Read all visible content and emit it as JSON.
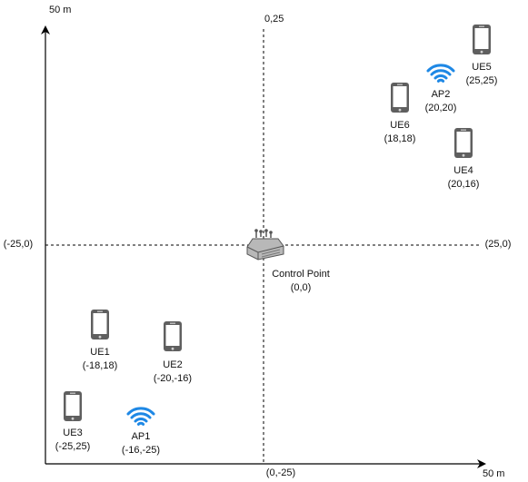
{
  "axes": {
    "y_axis_label": "50 m",
    "x_axis_label": "50 m",
    "top_label": "0,25",
    "bottom_label": "(0,-25)",
    "left_label": "(-25,0)",
    "right_label": "(25,0)"
  },
  "control_point": {
    "name": "Control Point",
    "coords": "(0,0)",
    "icon": "router-icon"
  },
  "devices": [
    {
      "name": "UE1",
      "coords": "(-18,18)",
      "icon": "smartphone-icon"
    },
    {
      "name": "UE2",
      "coords": "(-20,-16)",
      "icon": "smartphone-icon"
    },
    {
      "name": "UE3",
      "coords": "(-25,25)",
      "icon": "smartphone-icon"
    },
    {
      "name": "AP1",
      "coords": "(-16,-25)",
      "icon": "wifi-icon"
    },
    {
      "name": "UE6",
      "coords": "(18,18)",
      "icon": "smartphone-icon"
    },
    {
      "name": "AP2",
      "coords": "(20,20)",
      "icon": "wifi-icon"
    },
    {
      "name": "UE5",
      "coords": "(25,25)",
      "icon": "smartphone-icon"
    },
    {
      "name": "UE4",
      "coords": "(20,16)",
      "icon": "smartphone-icon"
    }
  ],
  "colors": {
    "axis": "#000000",
    "phone_body": "#5f5f5f",
    "wifi": "#1e88e5",
    "router": "#8a8a8a"
  }
}
